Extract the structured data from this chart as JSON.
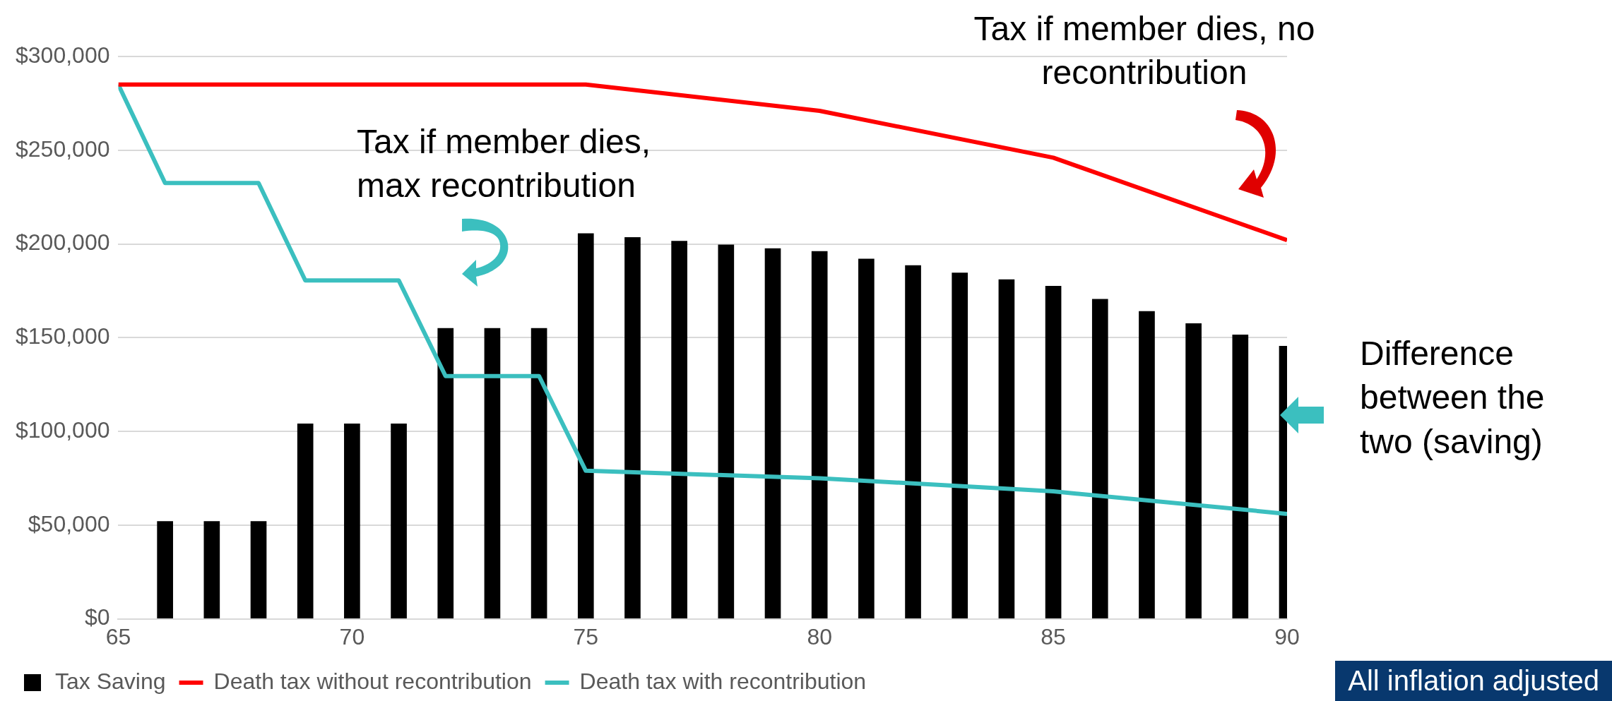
{
  "chart_data": {
    "type": "bar",
    "series": [
      {
        "name": "Tax Saving",
        "color": "#000000",
        "x": [
          66,
          67,
          68,
          69,
          70,
          71,
          72,
          73,
          74,
          75,
          76,
          77,
          78,
          79,
          80,
          81,
          82,
          83,
          84,
          85,
          86,
          87,
          88,
          89,
          90
        ],
        "values": [
          52000,
          52000,
          52000,
          104000,
          104000,
          104000,
          155000,
          155000,
          155000,
          205500,
          203500,
          201500,
          199500,
          197500,
          196000,
          192000,
          188500,
          184500,
          181000,
          177500,
          170500,
          164000,
          157500,
          151500,
          145500
        ]
      },
      {
        "name": "Death tax without recontribution",
        "type": "line",
        "color": "#ff0000",
        "x": [
          65,
          75,
          80,
          85,
          90
        ],
        "values": [
          285000,
          285000,
          271000,
          246000,
          202000
        ]
      },
      {
        "name": "Death tax with recontribution",
        "type": "line",
        "color": "#3bbfbf",
        "x": [
          65,
          66,
          68,
          69,
          71,
          72,
          74,
          75,
          80,
          85,
          90
        ],
        "values": [
          285000,
          232500,
          232500,
          180500,
          180500,
          129500,
          129500,
          79000,
          75000,
          68000,
          56000
        ]
      }
    ],
    "xlim": [
      65,
      90
    ],
    "xticks": [
      65,
      70,
      75,
      80,
      85,
      90
    ],
    "ylim": [
      0,
      300000
    ],
    "yticks": [
      {
        "value": 0,
        "label": "$0"
      },
      {
        "value": 50000,
        "label": "$50,000"
      },
      {
        "value": 100000,
        "label": "$100,000"
      },
      {
        "value": 150000,
        "label": "$150,000"
      },
      {
        "value": 200000,
        "label": "$200,000"
      },
      {
        "value": 250000,
        "label": "$250,000"
      },
      {
        "value": 300000,
        "label": "$300,000"
      }
    ],
    "grid": "y",
    "legend": "bottom",
    "marker": "none",
    "line_style": "solid",
    "annotations": [
      "Tax if member dies, no recontribution",
      "Tax if member dies, max recontribution",
      "Difference between the two (saving)",
      "All inflation adjusted"
    ]
  }
}
